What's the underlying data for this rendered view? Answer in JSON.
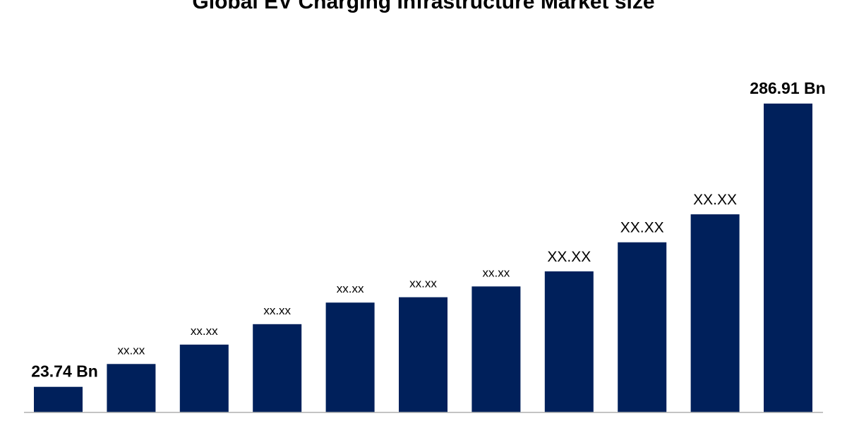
{
  "colors": {
    "bar": "#00205b",
    "axis": "#b0b0b0",
    "text": "#000000",
    "background": "#ffffff"
  },
  "chart_data": {
    "type": "bar",
    "title": "Global EV Charging Infrastructure Market size",
    "xlabel": "",
    "ylabel": "",
    "ylim": [
      0,
      332
    ],
    "grid": false,
    "legend": "none",
    "values": [
      23.74,
      45,
      63,
      82,
      102,
      107,
      117,
      131,
      158,
      184,
      286.91
    ],
    "labels": [
      "23.74 Bn",
      "xx.xx",
      "xx.xx",
      "xx.xx",
      "xx.xx",
      "xx.xx",
      "xx.xx",
      "XX.XX",
      "XX.XX",
      "XX.XX",
      "286.91 Bn"
    ]
  }
}
